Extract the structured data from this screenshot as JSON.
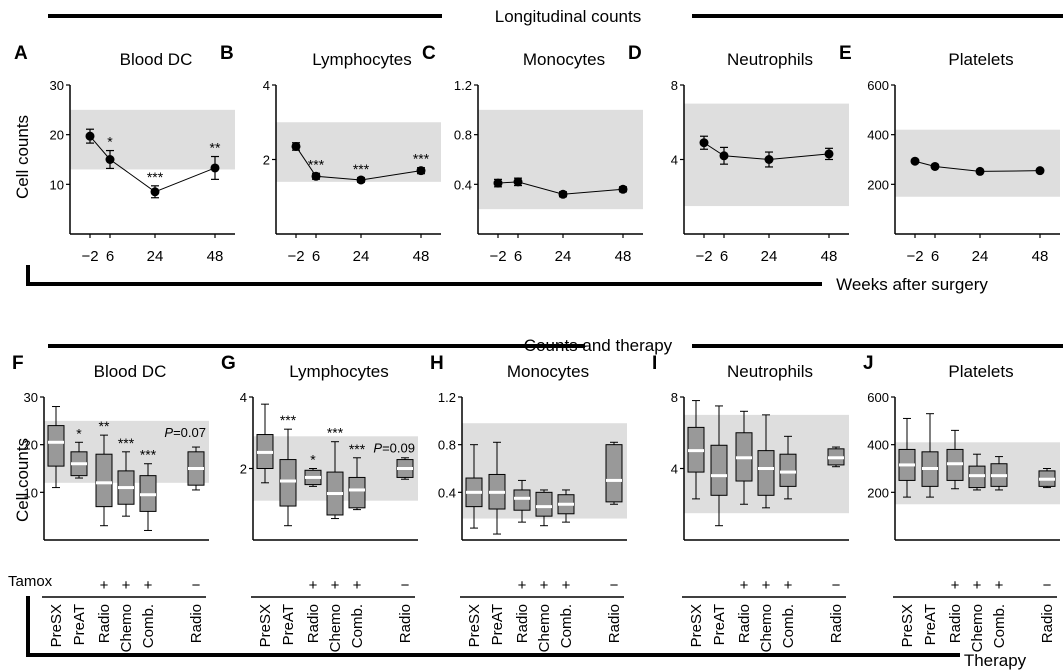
{
  "section_top": {
    "title": "Longitudinal counts",
    "xlabel": "Weeks after surgery"
  },
  "section_bottom": {
    "title": "Counts and therapy",
    "xlabel": "Therapy"
  },
  "ylabel": "Cell counts",
  "tamox_label": "Tamox",
  "colors": {
    "shade": "#dedede",
    "box": "#999999",
    "median": "#ffffff",
    "line": "#000000"
  },
  "chart_data": [
    {
      "panel": "A",
      "type": "line",
      "title": "Blood DC",
      "x": [
        -2,
        6,
        24,
        48
      ],
      "values": [
        19.7,
        15.0,
        8.5,
        13.3
      ],
      "err": [
        1.4,
        1.8,
        1.2,
        2.3
      ],
      "stars": [
        "",
        "*",
        "***",
        "**"
      ],
      "ylim": [
        0,
        30
      ],
      "yticks": [
        "10",
        "20",
        "30"
      ],
      "xticks": [
        "−2",
        "6",
        "24",
        "48"
      ],
      "ref_range": [
        13,
        25
      ]
    },
    {
      "panel": "B",
      "type": "line",
      "title": "Lymphocytes",
      "x": [
        -2,
        6,
        24,
        48
      ],
      "values": [
        2.35,
        1.55,
        1.45,
        1.7
      ],
      "err": [
        0.1,
        0.08,
        0.06,
        0.08
      ],
      "stars": [
        "",
        "***",
        "***",
        "***"
      ],
      "ylim": [
        0,
        4
      ],
      "yticks": [
        "2",
        "4"
      ],
      "xticks": [
        "−2",
        "6",
        "24",
        "48"
      ],
      "ref_range": [
        1.4,
        3.0
      ]
    },
    {
      "panel": "C",
      "type": "line",
      "title": "Monocytes",
      "x": [
        -2,
        6,
        24,
        48
      ],
      "values": [
        0.41,
        0.42,
        0.32,
        0.36
      ],
      "err": [
        0.03,
        0.03,
        0.02,
        0.02
      ],
      "stars": [
        "",
        "",
        "",
        ""
      ],
      "ylim": [
        0,
        1.2
      ],
      "yticks": [
        "0.4",
        "0.8",
        "1.2"
      ],
      "xticks": [
        "−2",
        "6",
        "24",
        "48"
      ],
      "ref_range": [
        0.2,
        1.0
      ]
    },
    {
      "panel": "D",
      "type": "line",
      "title": "Neutrophils",
      "x": [
        -2,
        6,
        24,
        48
      ],
      "values": [
        4.9,
        4.2,
        4.0,
        4.3
      ],
      "err": [
        0.35,
        0.45,
        0.4,
        0.3
      ],
      "stars": [
        "",
        "",
        "",
        ""
      ],
      "ylim": [
        0,
        8
      ],
      "yticks": [
        "4",
        "8"
      ],
      "xticks": [
        "−2",
        "6",
        "24",
        "48"
      ],
      "ref_range": [
        1.5,
        7.0
      ]
    },
    {
      "panel": "E",
      "type": "line",
      "title": "Platelets",
      "x": [
        -2,
        6,
        24,
        48
      ],
      "values": [
        293,
        272,
        252,
        255
      ],
      "err": [
        6,
        6,
        5,
        5
      ],
      "stars": [
        "",
        "",
        "",
        ""
      ],
      "ylim": [
        0,
        600
      ],
      "yticks": [
        "200",
        "400",
        "600"
      ],
      "xticks": [
        "−2",
        "6",
        "24",
        "48"
      ],
      "ref_range": [
        150,
        420
      ]
    },
    {
      "panel": "F",
      "type": "box",
      "title": "Blood DC",
      "categories": [
        "PreSX",
        "PreAT",
        "Radio",
        "Chemo",
        "Comb.",
        "Radio"
      ],
      "tamox": [
        "",
        "",
        "+",
        "+",
        "+",
        "−"
      ],
      "ylim": [
        0,
        30
      ],
      "yticks": [
        "10",
        "20",
        "30"
      ],
      "ref_range": [
        12,
        25
      ],
      "pvalue": {
        "italic": "P",
        "rest": "=0.07"
      },
      "stars": [
        "",
        "*",
        "**",
        "***",
        "***",
        ""
      ],
      "boxes": [
        {
          "min": 11,
          "q1": 15.5,
          "median": 20.5,
          "q3": 24,
          "max": 28
        },
        {
          "min": 13,
          "q1": 13.5,
          "median": 16,
          "q3": 18.5,
          "max": 20.5
        },
        {
          "min": 3,
          "q1": 7,
          "median": 12,
          "q3": 18,
          "max": 22
        },
        {
          "min": 5,
          "q1": 7.5,
          "median": 11,
          "q3": 14.5,
          "max": 18.5
        },
        {
          "min": 2,
          "q1": 6,
          "median": 9.5,
          "q3": 13.5,
          "max": 16
        },
        {
          "min": 10.5,
          "q1": 11.5,
          "median": 15,
          "q3": 18.5,
          "max": 19.5
        }
      ]
    },
    {
      "panel": "G",
      "type": "box",
      "title": "Lymphocytes",
      "categories": [
        "PreSX",
        "PreAT",
        "Radio",
        "Chemo",
        "Comb.",
        "Radio"
      ],
      "tamox": [
        "",
        "",
        "+",
        "+",
        "+",
        "−"
      ],
      "ylim": [
        0,
        4
      ],
      "yticks": [
        "2",
        "4"
      ],
      "ref_range": [
        1.1,
        2.9
      ],
      "pvalue": {
        "italic": "P",
        "rest": "=0.09"
      },
      "stars": [
        "",
        "***",
        "*",
        "***",
        "***",
        ""
      ],
      "boxes": [
        {
          "min": 1.6,
          "q1": 2.0,
          "median": 2.45,
          "q3": 2.95,
          "max": 3.8
        },
        {
          "min": 0.4,
          "q1": 0.95,
          "median": 1.65,
          "q3": 2.25,
          "max": 3.1
        },
        {
          "min": 1.5,
          "q1": 1.55,
          "median": 1.75,
          "q3": 1.95,
          "max": 2.0
        },
        {
          "min": 0.6,
          "q1": 0.7,
          "median": 1.3,
          "q3": 1.9,
          "max": 2.75
        },
        {
          "min": 0.85,
          "q1": 0.9,
          "median": 1.4,
          "q3": 1.75,
          "max": 2.3
        },
        {
          "min": 1.7,
          "q1": 1.75,
          "median": 2.0,
          "q3": 2.25,
          "max": 2.3
        }
      ]
    },
    {
      "panel": "H",
      "type": "box",
      "title": "Monocytes",
      "categories": [
        "PreSX",
        "PreAT",
        "Radio",
        "Chemo",
        "Comb.",
        "Radio"
      ],
      "tamox": [
        "",
        "",
        "+",
        "+",
        "+",
        "−"
      ],
      "ylim": [
        0,
        1.2
      ],
      "yticks": [
        "0.4",
        "0.8",
        "1.2"
      ],
      "ref_range": [
        0.18,
        0.98
      ],
      "stars": [
        "",
        "",
        "",
        "",
        "",
        ""
      ],
      "boxes": [
        {
          "min": 0.1,
          "q1": 0.28,
          "median": 0.4,
          "q3": 0.52,
          "max": 0.8
        },
        {
          "min": 0.05,
          "q1": 0.26,
          "median": 0.4,
          "q3": 0.55,
          "max": 0.82
        },
        {
          "min": 0.15,
          "q1": 0.25,
          "median": 0.35,
          "q3": 0.42,
          "max": 0.5
        },
        {
          "min": 0.12,
          "q1": 0.2,
          "median": 0.28,
          "q3": 0.4,
          "max": 0.42
        },
        {
          "min": 0.15,
          "q1": 0.22,
          "median": 0.3,
          "q3": 0.38,
          "max": 0.42
        },
        {
          "min": 0.3,
          "q1": 0.32,
          "median": 0.5,
          "q3": 0.8,
          "max": 0.82
        }
      ]
    },
    {
      "panel": "I",
      "type": "box",
      "title": "Neutrophils",
      "categories": [
        "PreSX",
        "PreAT",
        "Radio",
        "Chemo",
        "Comb.",
        "Radio"
      ],
      "tamox": [
        "",
        "",
        "+",
        "+",
        "+",
        "−"
      ],
      "ylim": [
        0,
        8
      ],
      "yticks": [
        "4",
        "8"
      ],
      "ref_range": [
        1.5,
        7.0
      ],
      "stars": [
        "",
        "",
        "",
        "",
        "",
        ""
      ],
      "boxes": [
        {
          "min": 2.3,
          "q1": 3.8,
          "median": 5.0,
          "q3": 6.3,
          "max": 7.8
        },
        {
          "min": 0.8,
          "q1": 2.5,
          "median": 3.6,
          "q3": 5.3,
          "max": 7.5
        },
        {
          "min": 2.0,
          "q1": 3.3,
          "median": 4.6,
          "q3": 6.0,
          "max": 7.2
        },
        {
          "min": 1.8,
          "q1": 2.5,
          "median": 4.0,
          "q3": 5.0,
          "max": 7.0
        },
        {
          "min": 2.3,
          "q1": 3.0,
          "median": 3.8,
          "q3": 4.8,
          "max": 5.8
        },
        {
          "min": 4.1,
          "q1": 4.2,
          "median": 4.6,
          "q3": 5.1,
          "max": 5.2
        }
      ]
    },
    {
      "panel": "J",
      "type": "box",
      "title": "Platelets",
      "categories": [
        "PreSX",
        "PreAT",
        "Radio",
        "Chemo",
        "Comb.",
        "Radio"
      ],
      "tamox": [
        "",
        "",
        "+",
        "+",
        "+",
        "−"
      ],
      "ylim": [
        0,
        600
      ],
      "yticks": [
        "200",
        "400",
        "600"
      ],
      "ref_range": [
        150,
        410
      ],
      "stars": [
        "",
        "",
        "",
        "",
        "",
        ""
      ],
      "boxes": [
        {
          "min": 180,
          "q1": 250,
          "median": 315,
          "q3": 380,
          "max": 510
        },
        {
          "min": 180,
          "q1": 225,
          "median": 300,
          "q3": 370,
          "max": 530
        },
        {
          "min": 215,
          "q1": 250,
          "median": 320,
          "q3": 380,
          "max": 460
        },
        {
          "min": 210,
          "q1": 220,
          "median": 270,
          "q3": 310,
          "max": 360
        },
        {
          "min": 210,
          "q1": 225,
          "median": 270,
          "q3": 320,
          "max": 350
        },
        {
          "min": 220,
          "q1": 225,
          "median": 255,
          "q3": 290,
          "max": 300
        }
      ]
    }
  ]
}
